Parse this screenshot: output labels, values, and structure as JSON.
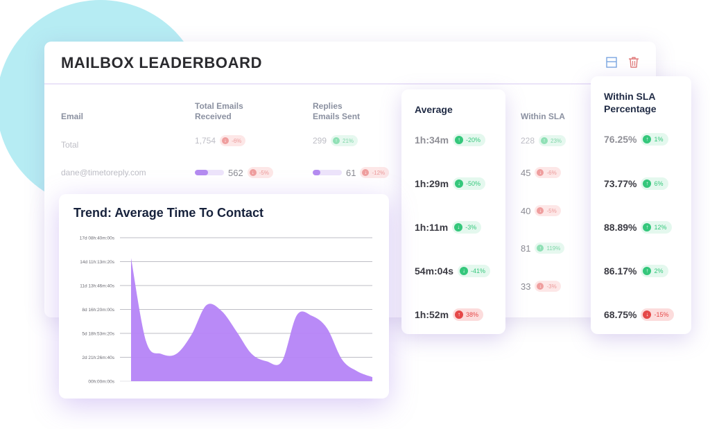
{
  "leaderboard": {
    "title": "MAILBOX LEADERBOARD",
    "icons": {
      "layout": "layout-icon",
      "delete": "trash-icon"
    },
    "columns": {
      "email": "Email",
      "received_line1": "Total Emails",
      "received_line2": "Received",
      "replies_line1": "Replies",
      "replies_line2": "Emails Sent",
      "within_sla": "Within SLA"
    },
    "total_row": {
      "label": "Total",
      "received": "1,754",
      "received_change": "-6%",
      "replies": "299",
      "replies_change": "21%",
      "within_sla": "228",
      "within_sla_change": "23%"
    },
    "rows": [
      {
        "email": "dane@timetoreply.com",
        "received": "562",
        "received_change": "-5%",
        "received_bar": 45,
        "replies": "61",
        "replies_change": "-12%",
        "replies_bar": 25,
        "within_sla": "45",
        "within_sla_change": "-6%"
      }
    ],
    "within_sla_extra": [
      {
        "value": "40",
        "change": "-5%",
        "dir": "down"
      },
      {
        "value": "81",
        "change": "119%",
        "dir": "up"
      },
      {
        "value": "33",
        "change": "-3%",
        "dir": "down"
      }
    ]
  },
  "average_card": {
    "title": "Average",
    "items": [
      {
        "value": "1h:34m",
        "change": "-20%",
        "dir": "up"
      },
      {
        "value": "1h:29m",
        "change": "-50%",
        "dir": "down"
      },
      {
        "value": "1h:11m",
        "change": "-3%",
        "dir": "down"
      },
      {
        "value": "54m:04s",
        "change": "-41%",
        "dir": "down"
      },
      {
        "value": "1h:52m",
        "change": "38%",
        "dir": "up"
      }
    ]
  },
  "sla_card": {
    "title_line1": "Within SLA",
    "title_line2": "Percentage",
    "items": [
      {
        "value": "76.25%",
        "change": "1%",
        "dir": "up"
      },
      {
        "value": "73.77%",
        "change": "6%",
        "dir": "up"
      },
      {
        "value": "88.89%",
        "change": "12%",
        "dir": "up"
      },
      {
        "value": "86.17%",
        "change": "2%",
        "dir": "up"
      },
      {
        "value": "68.75%",
        "change": "-15%",
        "dir": "down"
      }
    ]
  },
  "colors": {
    "accent_purple": "#b48bf0",
    "area_fill": "#b584f7",
    "positive": "#34c77b",
    "negative": "#e54848",
    "cyan_circle": "#b6ecf3"
  },
  "chart_data": {
    "type": "area",
    "title": "Trend: Average Time To Contact",
    "xlabel": "",
    "ylabel": "",
    "y_ticks": [
      "00h:00m:00s",
      "2d 21h:26m:40s",
      "5d 18h:53m:20s",
      "8d 16h:20m:00s",
      "11d 13h:46m:40s",
      "14d 11h:13m:20s",
      "17d 08h:40m:00s"
    ],
    "y_tick_values_days": [
      0,
      2.894,
      5.787,
      8.681,
      11.574,
      14.468,
      17.361
    ],
    "ylim_days": [
      0,
      17.361
    ],
    "grid": true,
    "legend": null,
    "x": [
      0,
      1,
      2,
      3,
      4,
      5,
      6,
      7,
      8,
      9,
      10,
      11,
      12,
      13,
      14,
      15,
      16
    ],
    "values_days": [
      14.9,
      4.8,
      3.3,
      3.3,
      5.6,
      9.2,
      8.5,
      6.0,
      3.3,
      2.4,
      2.4,
      8.0,
      7.9,
      6.4,
      2.6,
      1.2,
      0.5
    ],
    "series_color": "#b584f7"
  }
}
